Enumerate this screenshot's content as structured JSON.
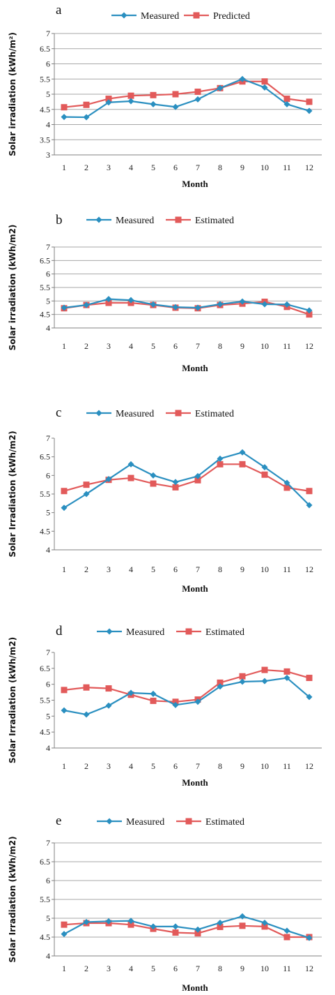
{
  "colors": {
    "measured": "#2a8fc0",
    "estimated": "#e25a5a",
    "grid": "#a7a7a7",
    "axis": "#808080"
  },
  "chart_data": [
    {
      "type": "line",
      "panel_label": "a",
      "xlabel": "Month",
      "ylabel": "Solar irradiation (kWh/m²)",
      "categories": [
        "1",
        "2",
        "3",
        "4",
        "5",
        "6",
        "7",
        "8",
        "9",
        "10",
        "11",
        "12"
      ],
      "yticks": [
        "3",
        "3.5",
        "4",
        "4.5",
        "5",
        "5.5",
        "6",
        "6.5",
        "7"
      ],
      "ylim": [
        3,
        7
      ],
      "grid": true,
      "legend": "top",
      "series": [
        {
          "name": "Measured",
          "marker": "diamond",
          "values": [
            4.25,
            4.24,
            4.73,
            4.77,
            4.67,
            4.58,
            4.83,
            5.2,
            5.5,
            5.22,
            4.67,
            4.45
          ]
        },
        {
          "name": "Predicted",
          "marker": "square",
          "values": [
            4.57,
            4.65,
            4.85,
            4.95,
            4.97,
            5.0,
            5.08,
            5.2,
            5.42,
            5.42,
            4.85,
            4.75
          ]
        }
      ]
    },
    {
      "type": "line",
      "panel_label": "b",
      "xlabel": "Month",
      "ylabel": "Solar irradiation (kWh/m2)",
      "categories": [
        "1",
        "2",
        "3",
        "4",
        "5",
        "6",
        "7",
        "8",
        "9",
        "10",
        "11",
        "12"
      ],
      "yticks": [
        "4",
        "4.5",
        "5",
        "5.5",
        "6",
        "6.5",
        "7"
      ],
      "ylim": [
        4,
        7
      ],
      "grid": true,
      "legend": "top",
      "series": [
        {
          "name": "Measured",
          "marker": "diamond",
          "values": [
            4.75,
            4.85,
            5.07,
            5.03,
            4.87,
            4.77,
            4.75,
            4.88,
            4.98,
            4.88,
            4.87,
            4.65
          ]
        },
        {
          "name": "Estimated",
          "marker": "square",
          "values": [
            4.73,
            4.85,
            4.93,
            4.93,
            4.85,
            4.75,
            4.73,
            4.85,
            4.9,
            4.97,
            4.78,
            4.5
          ]
        }
      ]
    },
    {
      "type": "line",
      "panel_label": "c",
      "xlabel": "Month",
      "ylabel": "Solar Irradiation (kWh/m2)",
      "categories": [
        "1",
        "2",
        "3",
        "4",
        "5",
        "6",
        "7",
        "8",
        "9",
        "10",
        "11",
        "12"
      ],
      "yticks": [
        "4",
        "4.5",
        "5",
        "5.5",
        "6",
        "6.5",
        "7"
      ],
      "ylim": [
        4,
        7
      ],
      "grid": false,
      "legend": "top",
      "series": [
        {
          "name": "Measured",
          "marker": "diamond",
          "values": [
            5.13,
            5.5,
            5.9,
            6.3,
            6.0,
            5.82,
            5.98,
            6.45,
            6.62,
            6.22,
            5.8,
            5.2
          ]
        },
        {
          "name": "Estimated",
          "marker": "square",
          "values": [
            5.58,
            5.75,
            5.88,
            5.93,
            5.78,
            5.68,
            5.87,
            6.3,
            6.3,
            6.02,
            5.67,
            5.58
          ]
        }
      ]
    },
    {
      "type": "line",
      "panel_label": "d",
      "xlabel": "Month",
      "ylabel": "Solar Irradiation (kWh/m2)",
      "categories": [
        "1",
        "2",
        "3",
        "4",
        "5",
        "6",
        "7",
        "8",
        "9",
        "10",
        "11",
        "12"
      ],
      "yticks": [
        "4",
        "4.5",
        "5",
        "5.5",
        "6",
        "6.5",
        "7"
      ],
      "ylim": [
        4,
        7
      ],
      "grid": false,
      "legend": "top",
      "series": [
        {
          "name": "Measured",
          "marker": "diamond",
          "values": [
            5.18,
            5.05,
            5.33,
            5.73,
            5.7,
            5.35,
            5.45,
            5.93,
            6.08,
            6.1,
            6.2,
            5.6
          ]
        },
        {
          "name": "Estimated",
          "marker": "square",
          "values": [
            5.82,
            5.9,
            5.87,
            5.67,
            5.48,
            5.45,
            5.52,
            6.05,
            6.25,
            6.45,
            6.4,
            6.2
          ]
        }
      ]
    },
    {
      "type": "line",
      "panel_label": "e",
      "xlabel": "Month",
      "ylabel": "Solar Irradiation (kWh/m2)",
      "categories": [
        "1",
        "2",
        "3",
        "4",
        "5",
        "6",
        "7",
        "8",
        "9",
        "10",
        "11",
        "12"
      ],
      "yticks": [
        "4",
        "4.5",
        "5",
        "5.5",
        "6",
        "6.5",
        "7"
      ],
      "ylim": [
        4,
        7
      ],
      "grid": true,
      "legend": "top",
      "series": [
        {
          "name": "Measured",
          "marker": "diamond",
          "values": [
            4.58,
            4.9,
            4.92,
            4.93,
            4.78,
            4.78,
            4.7,
            4.88,
            5.05,
            4.88,
            4.67,
            4.48
          ]
        },
        {
          "name": "Estimated",
          "marker": "square",
          "values": [
            4.83,
            4.87,
            4.87,
            4.83,
            4.72,
            4.62,
            4.6,
            4.77,
            4.8,
            4.78,
            4.5,
            4.5
          ]
        }
      ]
    }
  ]
}
